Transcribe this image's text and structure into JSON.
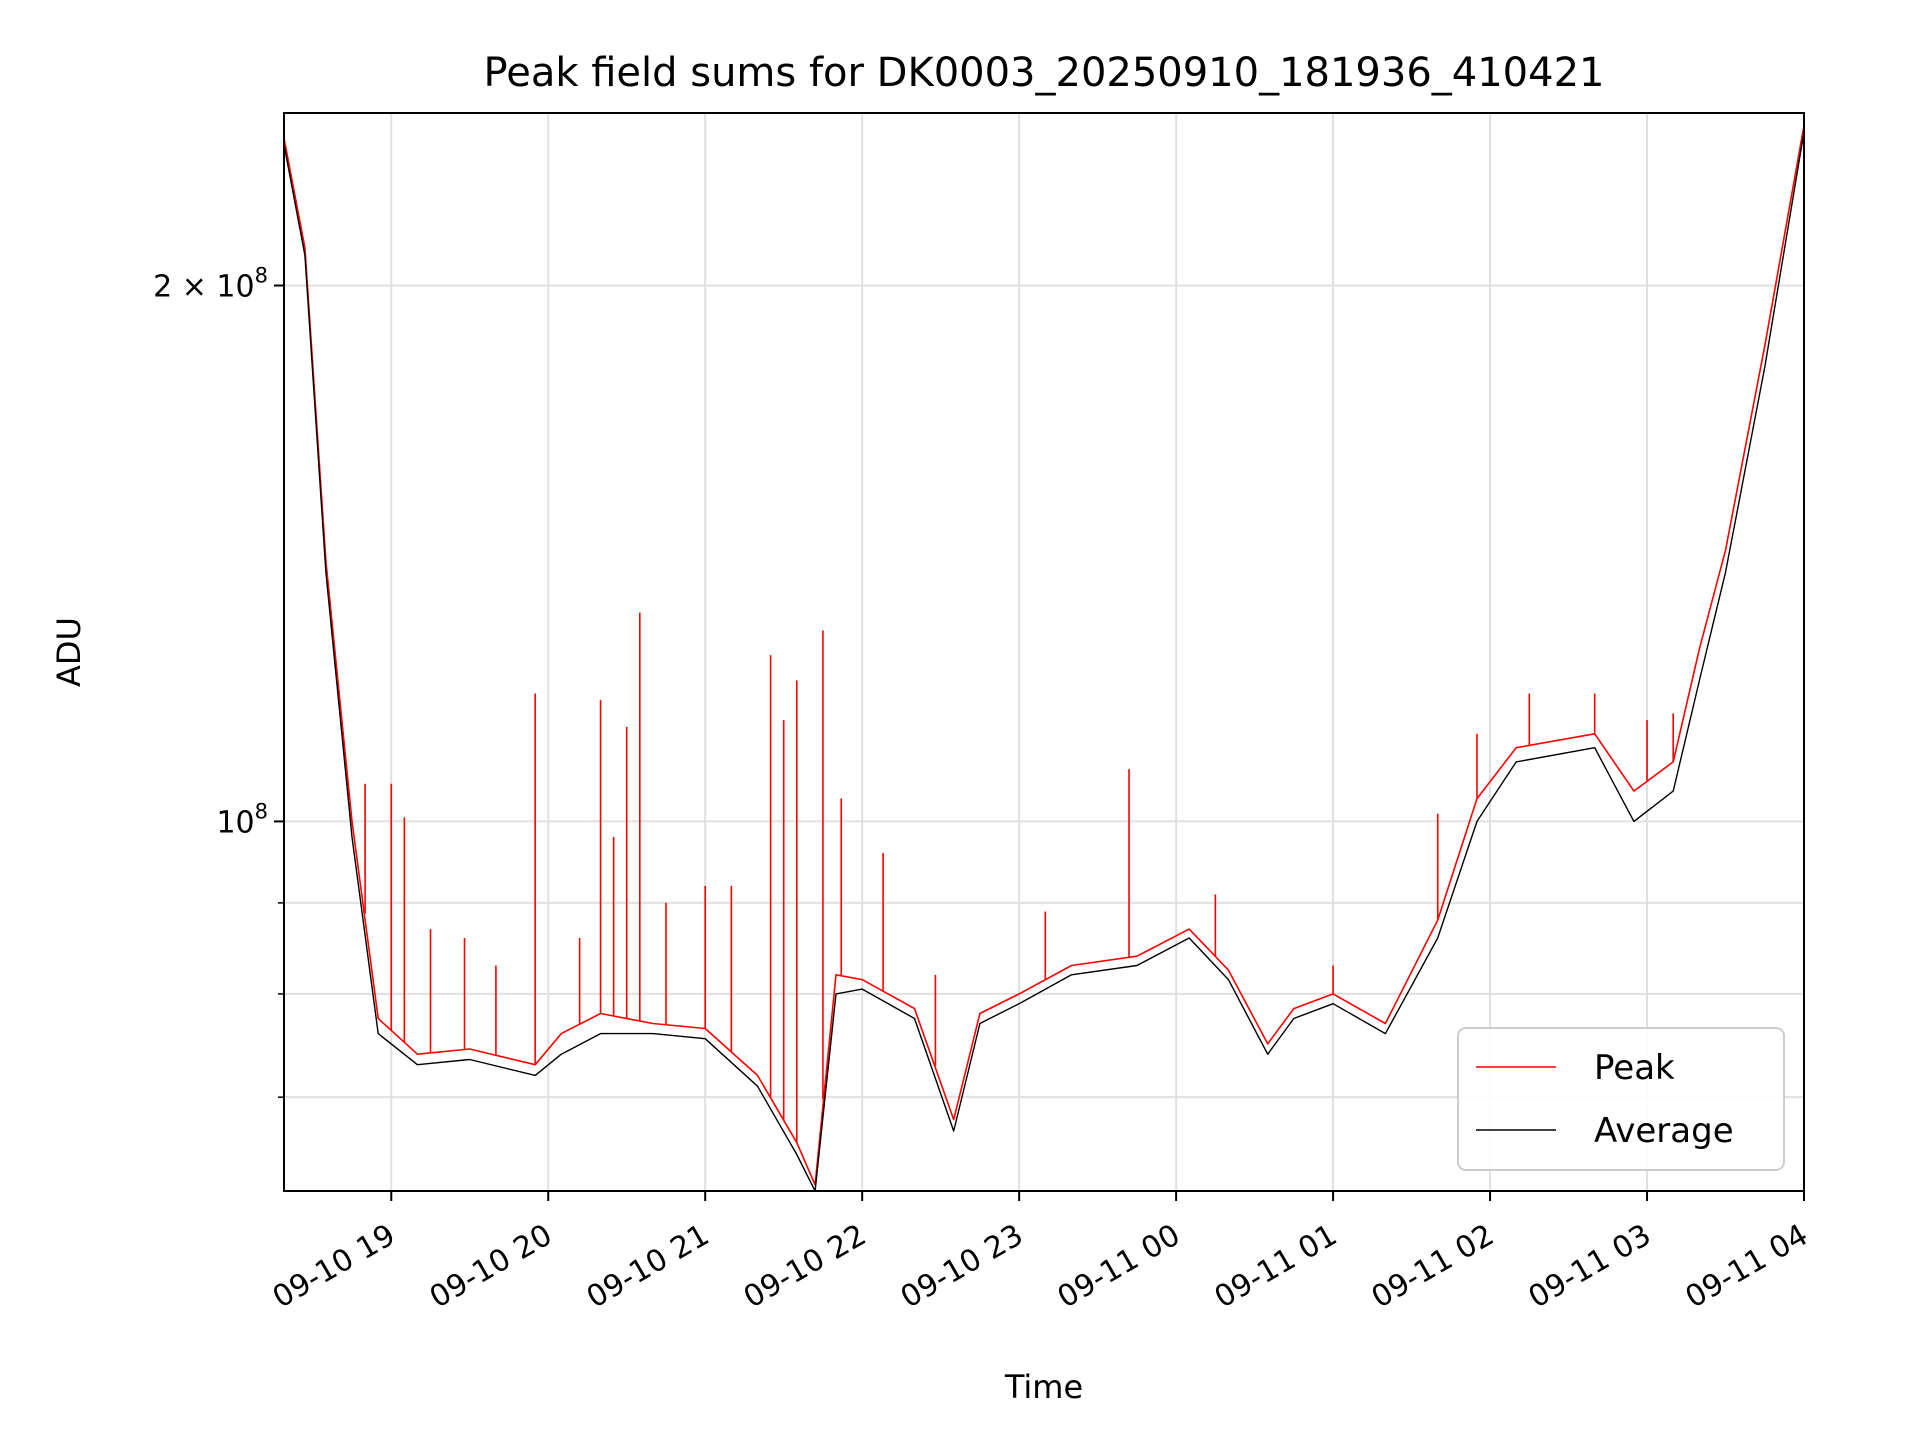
{
  "chart_data": {
    "type": "line",
    "title": "Peak field sums for DK0003_20250910_181936_410421",
    "xlabel": "Time",
    "ylabel": "ADU",
    "yscale": "log",
    "ylim": [
      62000000,
      250000000
    ],
    "xlim": [
      "2025-09-10 18:19",
      "2025-09-11 04:00"
    ],
    "grid": true,
    "legend_position": "lower-right",
    "x_ticks": [
      "09-10 19",
      "09-10 20",
      "09-10 21",
      "09-10 22",
      "09-10 23",
      "09-11 00",
      "09-11 01",
      "09-11 02",
      "09-11 03",
      "09-11 04"
    ],
    "y_tick_labels": [
      {
        "value": 100000000,
        "base": "10",
        "exp": "8",
        "prefix": ""
      },
      {
        "value": 200000000,
        "base": "10",
        "exp": "8",
        "prefix": "2 × "
      }
    ],
    "y_minor_ticks": [
      70000000,
      80000000,
      90000000
    ],
    "series": [
      {
        "name": "Peak",
        "color": "#ff0000",
        "x": [
          "2025-09-10 18:19",
          "2025-09-10 18:27",
          "2025-09-10 18:35",
          "2025-09-10 18:45",
          "2025-09-10 18:55",
          "2025-09-10 19:10",
          "2025-09-10 19:30",
          "2025-09-10 19:55",
          "2025-09-10 20:05",
          "2025-09-10 20:20",
          "2025-09-10 20:40",
          "2025-09-10 21:00",
          "2025-09-10 21:20",
          "2025-09-10 21:35",
          "2025-09-10 21:42",
          "2025-09-10 21:50",
          "2025-09-10 22:00",
          "2025-09-10 22:20",
          "2025-09-10 22:35",
          "2025-09-10 22:45",
          "2025-09-10 23:00",
          "2025-09-10 23:20",
          "2025-09-10 23:45",
          "2025-09-11 00:05",
          "2025-09-11 00:20",
          "2025-09-11 00:35",
          "2025-09-11 00:45",
          "2025-09-11 01:00",
          "2025-09-11 01:20",
          "2025-09-11 01:40",
          "2025-09-11 01:55",
          "2025-09-11 02:10",
          "2025-09-11 02:40",
          "2025-09-11 02:55",
          "2025-09-11 03:10",
          "2025-09-11 03:20",
          "2025-09-11 03:30",
          "2025-09-11 03:45",
          "2025-09-11 04:00"
        ],
        "y": [
          242000000,
          210000000,
          140000000,
          100000000,
          77500000,
          74000000,
          74500000,
          73000000,
          76000000,
          78000000,
          77000000,
          76500000,
          72000000,
          66000000,
          62500000,
          82000000,
          81500000,
          78500000,
          68000000,
          78000000,
          80000000,
          83000000,
          84000000,
          87000000,
          82500000,
          75000000,
          78500000,
          80000000,
          77000000,
          88000000,
          103000000,
          110000000,
          112000000,
          104000000,
          108000000,
          125000000,
          142000000,
          185000000,
          246000000
        ],
        "spikes": [
          {
            "x": "2025-09-10 18:50",
            "y": 105000000
          },
          {
            "x": "2025-09-10 19:00",
            "y": 105000000
          },
          {
            "x": "2025-09-10 19:05",
            "y": 100500000
          },
          {
            "x": "2025-09-10 19:15",
            "y": 87000000
          },
          {
            "x": "2025-09-10 19:28",
            "y": 86000000
          },
          {
            "x": "2025-09-10 19:40",
            "y": 83000000
          },
          {
            "x": "2025-09-10 19:55",
            "y": 118000000
          },
          {
            "x": "2025-09-10 20:12",
            "y": 86000000
          },
          {
            "x": "2025-09-10 20:20",
            "y": 117000000
          },
          {
            "x": "2025-09-10 20:25",
            "y": 98000000
          },
          {
            "x": "2025-09-10 20:30",
            "y": 113000000
          },
          {
            "x": "2025-09-10 20:35",
            "y": 131000000
          },
          {
            "x": "2025-09-10 20:45",
            "y": 90000000
          },
          {
            "x": "2025-09-10 21:00",
            "y": 92000000
          },
          {
            "x": "2025-09-10 21:10",
            "y": 92000000
          },
          {
            "x": "2025-09-10 21:25",
            "y": 124000000
          },
          {
            "x": "2025-09-10 21:30",
            "y": 114000000
          },
          {
            "x": "2025-09-10 21:35",
            "y": 120000000
          },
          {
            "x": "2025-09-10 21:45",
            "y": 128000000
          },
          {
            "x": "2025-09-10 21:52",
            "y": 103000000
          },
          {
            "x": "2025-09-10 22:08",
            "y": 96000000
          },
          {
            "x": "2025-09-10 22:28",
            "y": 82000000
          },
          {
            "x": "2025-09-10 23:10",
            "y": 89000000
          },
          {
            "x": "2025-09-10 23:42",
            "y": 107000000
          },
          {
            "x": "2025-09-11 00:15",
            "y": 91000000
          },
          {
            "x": "2025-09-11 01:00",
            "y": 83000000
          },
          {
            "x": "2025-09-11 01:40",
            "y": 101000000
          },
          {
            "x": "2025-09-11 01:55",
            "y": 112000000
          },
          {
            "x": "2025-09-11 02:15",
            "y": 118000000
          },
          {
            "x": "2025-09-11 02:40",
            "y": 118000000
          },
          {
            "x": "2025-09-11 03:00",
            "y": 114000000
          },
          {
            "x": "2025-09-11 03:10",
            "y": 115000000
          }
        ]
      },
      {
        "name": "Average",
        "color": "#000000",
        "x": [
          "2025-09-10 18:19",
          "2025-09-10 18:27",
          "2025-09-10 18:35",
          "2025-09-10 18:45",
          "2025-09-10 18:55",
          "2025-09-10 19:10",
          "2025-09-10 19:30",
          "2025-09-10 19:55",
          "2025-09-10 20:05",
          "2025-09-10 20:20",
          "2025-09-10 20:40",
          "2025-09-10 21:00",
          "2025-09-10 21:20",
          "2025-09-10 21:35",
          "2025-09-10 21:42",
          "2025-09-10 21:50",
          "2025-09-10 22:00",
          "2025-09-10 22:20",
          "2025-09-10 22:35",
          "2025-09-10 22:45",
          "2025-09-10 23:00",
          "2025-09-10 23:20",
          "2025-09-10 23:45",
          "2025-09-11 00:05",
          "2025-09-11 00:20",
          "2025-09-11 00:35",
          "2025-09-11 00:45",
          "2025-09-11 01:00",
          "2025-09-11 01:20",
          "2025-09-11 01:40",
          "2025-09-11 01:55",
          "2025-09-11 02:10",
          "2025-09-11 02:40",
          "2025-09-11 02:55",
          "2025-09-11 03:10",
          "2025-09-11 03:20",
          "2025-09-11 03:30",
          "2025-09-11 03:45",
          "2025-09-11 04:00"
        ],
        "y": [
          240000000,
          208000000,
          138000000,
          98000000,
          76000000,
          73000000,
          73500000,
          72000000,
          74000000,
          76000000,
          76000000,
          75500000,
          71000000,
          65000000,
          62000000,
          80000000,
          80500000,
          77500000,
          67000000,
          77000000,
          79000000,
          82000000,
          83000000,
          86000000,
          81500000,
          74000000,
          77500000,
          79000000,
          76000000,
          86000000,
          100000000,
          108000000,
          110000000,
          100000000,
          104000000,
          120000000,
          138000000,
          180000000,
          244000000
        ]
      }
    ]
  }
}
